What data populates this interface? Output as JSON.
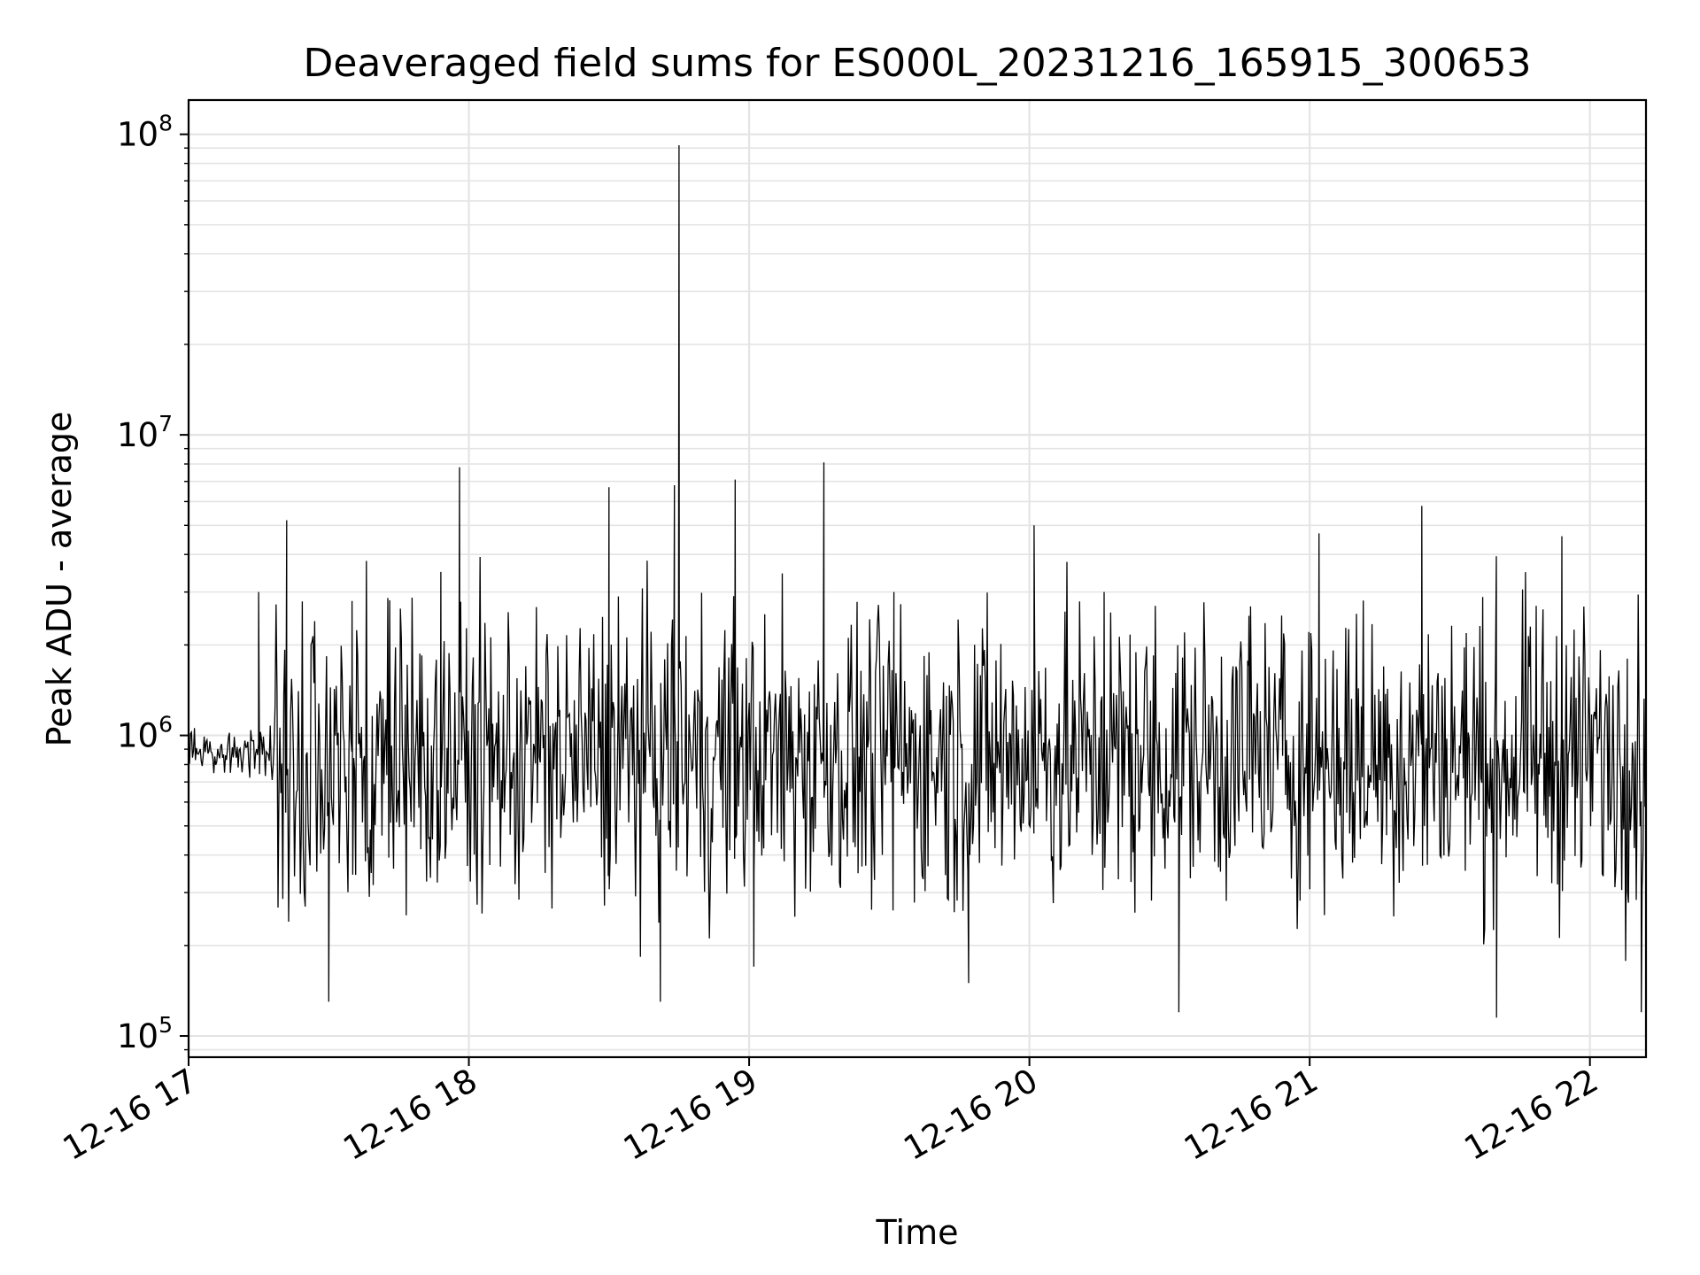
{
  "chart_data": {
    "type": "line",
    "title": "Deaveraged field sums for ES000L_20231216_165915_300653",
    "xlabel": "Time",
    "ylabel": "Peak ADU - average",
    "yscale": "log",
    "ylim": [
      85000,
      130000000
    ],
    "xlim": [
      "2023-12-16 17:00",
      "2023-12-16 22:12"
    ],
    "x_tick_labels": [
      "12-16 17",
      "12-16 18",
      "12-16 19",
      "12-16 20",
      "12-16 21",
      "12-16 22"
    ],
    "y_tick_labels": [
      {
        "base": "10",
        "exp": "5"
      },
      {
        "base": "10",
        "exp": "6"
      },
      {
        "base": "10",
        "exp": "7"
      },
      {
        "base": "10",
        "exp": "8"
      }
    ],
    "grid": true,
    "line_color": "#000000",
    "series": [
      {
        "x": [
          "2023-12-16 17:00",
          "2023-12-16 17:15",
          "2023-12-16 17:21",
          "2023-12-16 17:27",
          "2023-12-16 17:30",
          "2023-12-16 17:35",
          "2023-12-16 17:54",
          "2023-12-16 17:58",
          "2023-12-16 18:05",
          "2023-12-16 18:30",
          "2023-12-16 18:32",
          "2023-12-16 18:41",
          "2023-12-16 18:44",
          "2023-12-16 18:45",
          "2023-12-16 18:57",
          "2023-12-16 19:01",
          "2023-12-16 19:16",
          "2023-12-16 19:31",
          "2023-12-16 19:47",
          "2023-12-16 20:01",
          "2023-12-16 20:16",
          "2023-12-16 20:32",
          "2023-12-16 20:47",
          "2023-12-16 21:02",
          "2023-12-16 21:18",
          "2023-12-16 21:24",
          "2023-12-16 21:40",
          "2023-12-16 21:54",
          "2023-12-16 22:08",
          "2023-12-16 22:11"
        ],
        "y": [
          850000,
          3000000,
          5200000,
          2400000,
          130000,
          2800000,
          3500000,
          7800000,
          600000,
          6700000,
          2900000,
          130000,
          6800000,
          92000000,
          7100000,
          170000,
          8100000,
          3000000,
          150000,
          5000000,
          3000000,
          120000,
          2500000,
          4700000,
          250000,
          5800000,
          115000,
          4600000,
          1800000,
          120000
        ]
      }
    ]
  }
}
